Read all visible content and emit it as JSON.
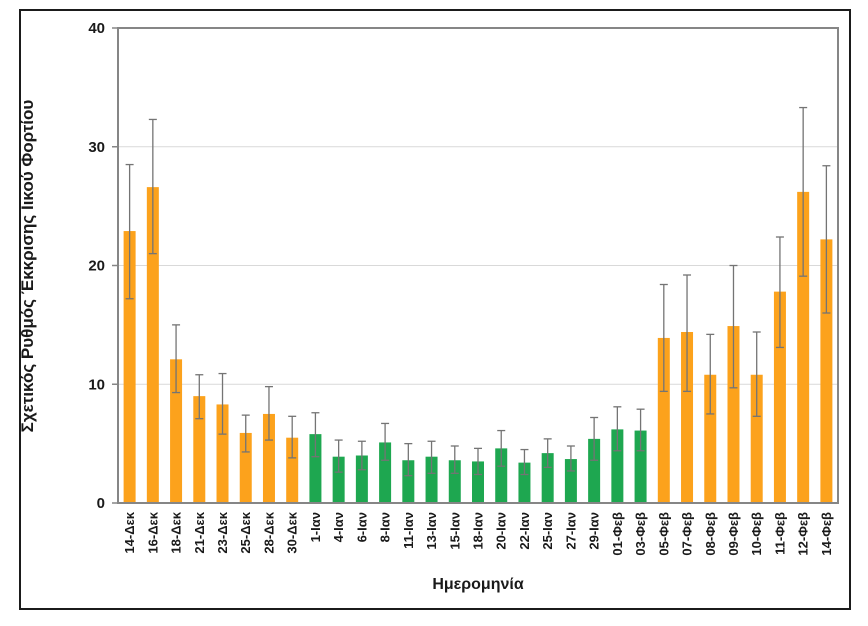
{
  "figure": {
    "background": "#ffffff",
    "border_color": "#1b1b1b"
  },
  "chart_data": {
    "type": "bar",
    "title": "",
    "xlabel": "Ημερομηνία",
    "ylabel": "Σχετικός Ρυθμός Έκκρισης Ιικού Φορτίου",
    "ylim": [
      0,
      40
    ],
    "yticks": [
      0,
      10,
      20,
      30,
      40
    ],
    "grid": "horizontal gridlines at 10, 20, 30",
    "legend": "none",
    "error_bars": "vertical whiskers with end caps",
    "palette": {
      "orange": "#FCA21C",
      "green": "#1EA750",
      "error_bar": "#747474",
      "axis_frame": "#868686",
      "gridline": "#D9D9D9",
      "label_color": "#1a1a1a"
    },
    "bars": [
      {
        "label": "14-Δεκ",
        "color": "orange",
        "value": 22.9,
        "err_lo": 17.2,
        "err_hi": 28.5
      },
      {
        "label": "16-Δεκ",
        "color": "orange",
        "value": 26.6,
        "err_lo": 21.0,
        "err_hi": 32.3
      },
      {
        "label": "18-Δεκ",
        "color": "orange",
        "value": 12.1,
        "err_lo": 9.3,
        "err_hi": 15.0
      },
      {
        "label": "21-Δεκ",
        "color": "orange",
        "value": 9.0,
        "err_lo": 7.1,
        "err_hi": 10.8
      },
      {
        "label": "23-Δεκ",
        "color": "orange",
        "value": 8.3,
        "err_lo": 5.8,
        "err_hi": 10.9
      },
      {
        "label": "25-Δεκ",
        "color": "orange",
        "value": 5.9,
        "err_lo": 4.3,
        "err_hi": 7.4
      },
      {
        "label": "28-Δεκ",
        "color": "orange",
        "value": 7.5,
        "err_lo": 5.3,
        "err_hi": 9.8
      },
      {
        "label": "30-Δεκ",
        "color": "orange",
        "value": 5.5,
        "err_lo": 3.8,
        "err_hi": 7.3
      },
      {
        "label": "1-Ιαν",
        "color": "green",
        "value": 5.8,
        "err_lo": 3.9,
        "err_hi": 7.6
      },
      {
        "label": "4-Ιαν",
        "color": "green",
        "value": 3.9,
        "err_lo": 2.6,
        "err_hi": 5.3
      },
      {
        "label": "6-Ιαν",
        "color": "green",
        "value": 4.0,
        "err_lo": 2.8,
        "err_hi": 5.2
      },
      {
        "label": "8-Ιαν",
        "color": "green",
        "value": 5.1,
        "err_lo": 3.6,
        "err_hi": 6.7
      },
      {
        "label": "11-Ιαν",
        "color": "green",
        "value": 3.6,
        "err_lo": 2.3,
        "err_hi": 5.0
      },
      {
        "label": "13-Ιαν",
        "color": "green",
        "value": 3.9,
        "err_lo": 2.5,
        "err_hi": 5.2
      },
      {
        "label": "15-Ιαν",
        "color": "green",
        "value": 3.6,
        "err_lo": 2.5,
        "err_hi": 4.8
      },
      {
        "label": "18-Ιαν",
        "color": "green",
        "value": 3.5,
        "err_lo": 2.4,
        "err_hi": 4.6
      },
      {
        "label": "20-Ιαν",
        "color": "green",
        "value": 4.6,
        "err_lo": 3.1,
        "err_hi": 6.1
      },
      {
        "label": "22-Ιαν",
        "color": "green",
        "value": 3.4,
        "err_lo": 2.4,
        "err_hi": 4.5
      },
      {
        "label": "25-Ιαν",
        "color": "green",
        "value": 4.2,
        "err_lo": 3.0,
        "err_hi": 5.4
      },
      {
        "label": "27-Ιαν",
        "color": "green",
        "value": 3.7,
        "err_lo": 2.7,
        "err_hi": 4.8
      },
      {
        "label": "29-Ιαν",
        "color": "green",
        "value": 5.4,
        "err_lo": 3.6,
        "err_hi": 7.2
      },
      {
        "label": "01-Φεβ",
        "color": "green",
        "value": 6.2,
        "err_lo": 4.4,
        "err_hi": 8.1
      },
      {
        "label": "03-Φεβ",
        "color": "green",
        "value": 6.1,
        "err_lo": 4.4,
        "err_hi": 7.9
      },
      {
        "label": "05-Φεβ",
        "color": "orange",
        "value": 13.9,
        "err_lo": 9.4,
        "err_hi": 18.4
      },
      {
        "label": "07-Φεβ",
        "color": "orange",
        "value": 14.4,
        "err_lo": 9.4,
        "err_hi": 19.2
      },
      {
        "label": "08-Φεβ",
        "color": "orange",
        "value": 10.8,
        "err_lo": 7.5,
        "err_hi": 14.2
      },
      {
        "label": "09-Φεβ",
        "color": "orange",
        "value": 14.9,
        "err_lo": 9.7,
        "err_hi": 20.0
      },
      {
        "label": "10-Φεβ",
        "color": "orange",
        "value": 10.8,
        "err_lo": 7.3,
        "err_hi": 14.4
      },
      {
        "label": "11-Φεβ",
        "color": "orange",
        "value": 17.8,
        "err_lo": 13.1,
        "err_hi": 22.4
      },
      {
        "label": "12-Φεβ",
        "color": "orange",
        "value": 26.2,
        "err_lo": 19.1,
        "err_hi": 33.3
      },
      {
        "label": "14-Φεβ",
        "color": "orange",
        "value": 22.2,
        "err_lo": 16.0,
        "err_hi": 28.4
      }
    ]
  }
}
